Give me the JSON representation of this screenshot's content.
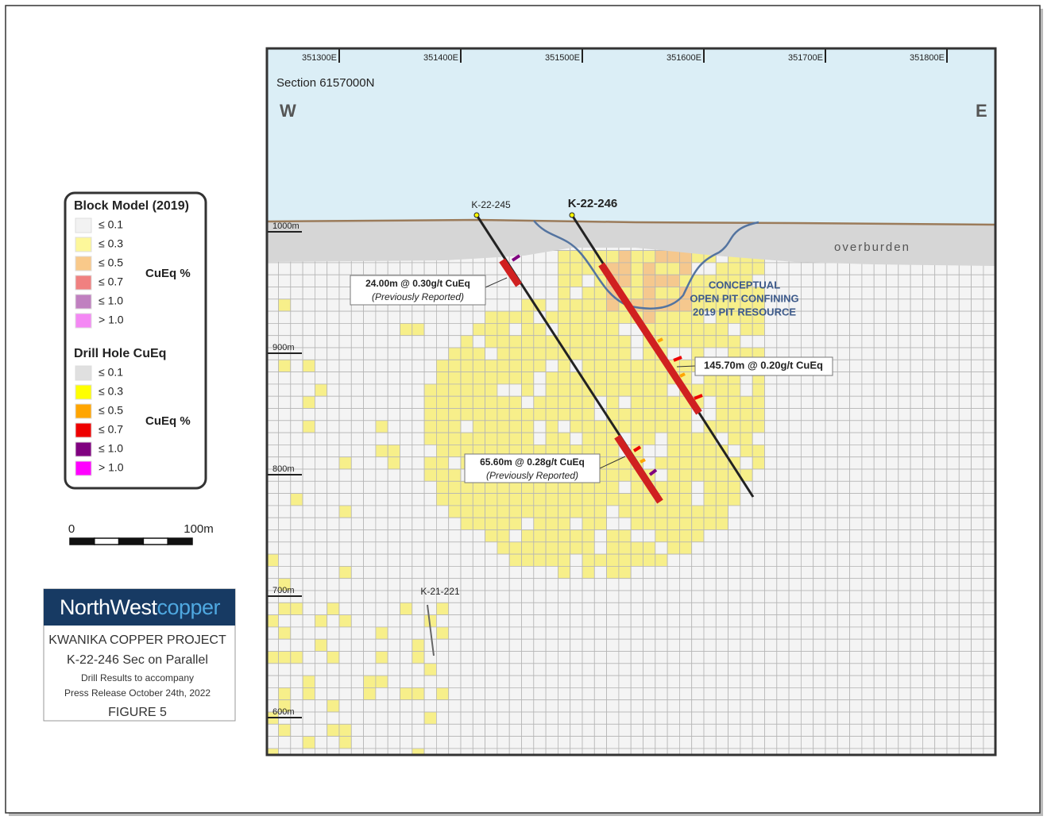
{
  "map": {
    "eastings": [
      "351300E",
      "351400E",
      "351500E",
      "351600E",
      "351700E",
      "351800E"
    ],
    "section": "Section 6157000N",
    "west": "W",
    "east": "E",
    "elevations": [
      "1000m",
      "900m",
      "800m",
      "700m",
      "600m"
    ],
    "overburden": "overburden",
    "pit_label": [
      "CONCEPTUAL",
      "OPEN PIT CONFINING",
      "2019 PIT RESOURCE"
    ],
    "holes": [
      "K-22-245",
      "K-22-246",
      "K-21-221"
    ],
    "intercepts": [
      {
        "text": "24.00m @ 0.30g/t CuEq",
        "note": "(Previously Reported)"
      },
      {
        "text": "145.70m @ 0.20g/t CuEq"
      },
      {
        "text": "65.60m @ 0.28g/t CuEq",
        "note": "(Previously Reported)"
      }
    ]
  },
  "legend": {
    "block_model": {
      "title": "Block Model (2019)",
      "unit": "CuEq %",
      "items": [
        {
          "label": "≤ 0.1",
          "color": "#f2f2f2"
        },
        {
          "label": "≤ 0.3",
          "color": "#fdf79a"
        },
        {
          "label": "≤ 0.5",
          "color": "#f9c98a"
        },
        {
          "label": "≤ 0.7",
          "color": "#f08080"
        },
        {
          "label": "≤ 1.0",
          "color": "#c080c0"
        },
        {
          "label": "> 1.0",
          "color": "#f488f4"
        }
      ]
    },
    "drill_hole": {
      "title": "Drill Hole CuEq",
      "unit": "CuEq %",
      "items": [
        {
          "label": "≤ 0.1",
          "color": "#e0e0e0"
        },
        {
          "label": "≤ 0.3",
          "color": "#ffff00"
        },
        {
          "label": "≤ 0.5",
          "color": "#ffa500"
        },
        {
          "label": "≤ 0.7",
          "color": "#ee0000"
        },
        {
          "label": "≤ 1.0",
          "color": "#800080"
        },
        {
          "label": "> 1.0",
          "color": "#ff00ff"
        }
      ]
    }
  },
  "scale": {
    "start": "0",
    "end": "100m"
  },
  "logo": {
    "north_west": "NorthWest",
    "copper": "copper"
  },
  "project": {
    "lines": [
      "KWANIKA COPPER PROJECT",
      "K-22-246 Sec on Parallel",
      "Drill Results to accompany",
      "Press Release October 24th, 2022"
    ],
    "figure": "FIGURE 5"
  }
}
